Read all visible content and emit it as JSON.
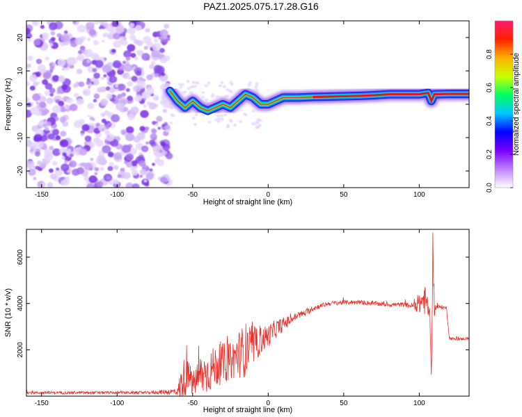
{
  "title": "PAZ1.2025.075.17.28.G16",
  "chart_data": [
    {
      "type": "heatmap",
      "xlabel": "Height of straight line (km)",
      "ylabel": "Frequency (Hz)",
      "xlim": [
        -160,
        133
      ],
      "ylim": [
        -25,
        25
      ],
      "xticks": [
        -150,
        -100,
        -50,
        0,
        50,
        100
      ],
      "yticks": [
        -20,
        -10,
        0,
        10,
        20
      ],
      "grid": false,
      "noise_region_x": [
        -160,
        -65
      ],
      "ridge": {
        "x": [
          -65,
          -60,
          -55,
          -50,
          -45,
          -40,
          -35,
          -30,
          -25,
          -20,
          -15,
          -10,
          -5,
          0,
          5,
          10,
          20,
          30,
          40,
          50,
          60,
          70,
          80,
          90,
          100,
          106,
          108,
          110,
          120,
          133
        ],
        "y": [
          4,
          1,
          -1,
          1,
          -1,
          -2,
          -1,
          0,
          -1,
          1,
          3,
          2,
          0,
          0,
          1,
          2,
          2,
          2.2,
          2.3,
          2.4,
          2.5,
          2.7,
          3,
          3,
          3,
          3.4,
          1,
          3,
          3.1,
          3.1
        ]
      }
    },
    {
      "type": "colorbar",
      "label": "Normalized spectral amplitude",
      "range": [
        0,
        1
      ],
      "ticks": [
        0.0,
        0.2,
        0.4,
        0.6,
        0.8
      ],
      "colors": [
        "#ffffff",
        "#c080ff",
        "#7a00ff",
        "#0000ff",
        "#00c8ff",
        "#00ff60",
        "#c8ff00",
        "#ffb000",
        "#ff2000",
        "#ff1c6c"
      ]
    },
    {
      "type": "line",
      "xlabel": "Height of straight line (km)",
      "ylabel": "SNR (10 * v/v)",
      "xlim": [
        -160,
        133
      ],
      "ylim": [
        0,
        7200
      ],
      "xticks": [
        -150,
        -100,
        -50,
        0,
        50,
        100
      ],
      "yticks": [
        2000,
        4000,
        6000
      ],
      "color": "#e8302a",
      "series": {
        "x": [
          -160,
          -140,
          -120,
          -100,
          -80,
          -60,
          -58,
          -55,
          -52,
          -50,
          -45,
          -40,
          -35,
          -30,
          -25,
          -20,
          -15,
          -10,
          -5,
          0,
          5,
          10,
          15,
          20,
          25,
          30,
          35,
          40,
          50,
          60,
          70,
          80,
          90,
          95,
          100,
          103,
          105,
          107,
          108,
          109,
          110,
          111,
          112,
          115,
          118,
          120,
          125,
          133
        ],
        "y": [
          150,
          150,
          150,
          150,
          150,
          200,
          400,
          900,
          800,
          500,
          900,
          1000,
          1300,
          1400,
          1500,
          1800,
          2000,
          2100,
          2400,
          2600,
          2900,
          3100,
          3300,
          3500,
          3600,
          3800,
          3900,
          4000,
          4050,
          4050,
          4000,
          3950,
          3950,
          3900,
          3950,
          4200,
          4000,
          3500,
          700,
          6500,
          3800,
          3800,
          3850,
          3850,
          3800,
          2500,
          2450,
          2500
        ],
        "noise_amplitude": [
          60,
          60,
          60,
          60,
          60,
          150,
          800,
          900,
          600,
          500,
          900,
          900,
          900,
          900,
          800,
          1000,
          1200,
          800,
          600,
          500,
          400,
          300,
          200,
          160,
          140,
          120,
          100,
          100,
          100,
          100,
          100,
          100,
          100,
          120,
          400,
          700,
          500,
          300,
          300,
          700,
          400,
          100,
          100,
          80,
          80,
          60,
          60,
          60
        ]
      }
    }
  ]
}
